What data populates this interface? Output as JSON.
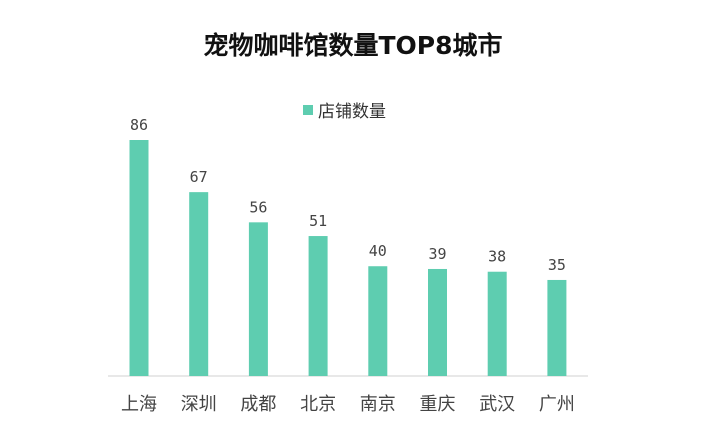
{
  "chart_data": {
    "type": "bar",
    "title": "宠物咖啡馆数量TOP8城市",
    "legend": [
      "店铺数量"
    ],
    "legend_position": "top-center",
    "categories": [
      "上海",
      "深圳",
      "成都",
      "北京",
      "南京",
      "重庆",
      "武汉",
      "广州"
    ],
    "series": [
      {
        "name": "店铺数量",
        "values": [
          86,
          67,
          56,
          51,
          40,
          39,
          38,
          35
        ]
      }
    ],
    "xlabel": "",
    "ylabel": "",
    "ylim": [
      0,
      86
    ],
    "grid": false,
    "bar_color": "#5ecdb0"
  }
}
